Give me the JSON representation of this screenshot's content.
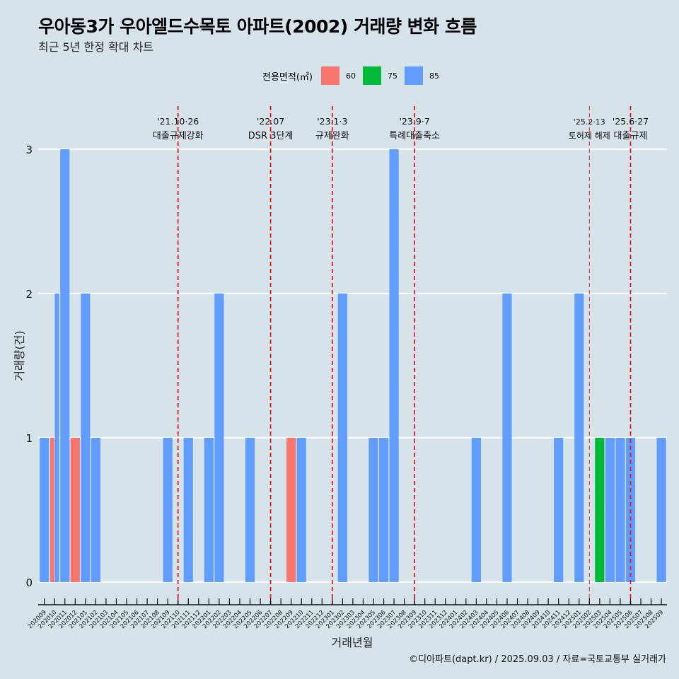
{
  "header": {
    "title": "우아동3가 우아엘드수목토 아파트(2002) 거래량 변화 흐름",
    "subtitle": "최근 5년 한정 확대 차트"
  },
  "legend": {
    "title": "전용면적(㎡)",
    "items": [
      {
        "label": "60",
        "color": "#F8766D"
      },
      {
        "label": "75",
        "color": "#00BA38"
      },
      {
        "label": "85",
        "color": "#619CFF"
      }
    ]
  },
  "footer": "©디아파트(dapt.kr) / 2025.09.03 / 자료=국토교통부 실거래가",
  "chart_data": {
    "type": "bar",
    "title": "우아동3가 우아엘드수목토 아파트(2002) 거래량 변화 흐름",
    "xlabel": "거래년월",
    "ylabel": "거래량(건)",
    "ylim": [
      0,
      3
    ],
    "yticks": [
      0,
      1,
      2,
      3
    ],
    "grid": true,
    "legend_position": "top",
    "categories": [
      "202009",
      "202010",
      "202011",
      "202012",
      "202101",
      "202102",
      "202103",
      "202104",
      "202105",
      "202106",
      "202107",
      "202108",
      "202109",
      "202110",
      "202111",
      "202112",
      "202201",
      "202202",
      "202203",
      "202204",
      "202205",
      "202206",
      "202207",
      "202208",
      "202209",
      "202210",
      "202211",
      "202212",
      "202301",
      "202302",
      "202303",
      "202304",
      "202305",
      "202306",
      "202307",
      "202308",
      "202309",
      "202310",
      "202311",
      "202312",
      "202401",
      "202402",
      "202403",
      "202404",
      "202405",
      "202406",
      "202407",
      "202408",
      "202409",
      "202410",
      "202411",
      "202412",
      "202501",
      "202502",
      "202503",
      "202504",
      "202505",
      "202506",
      "202507",
      "202508",
      "202509"
    ],
    "series": [
      {
        "name": "60",
        "color": "#F8766D",
        "points": [
          {
            "x": "202010",
            "y": 1
          },
          {
            "x": "202012",
            "y": 1
          },
          {
            "x": "202209",
            "y": 1
          }
        ]
      },
      {
        "name": "75",
        "color": "#00BA38",
        "points": [
          {
            "x": "202503",
            "y": 1
          }
        ]
      },
      {
        "name": "85",
        "color": "#619CFF",
        "points": [
          {
            "x": "202009",
            "y": 1
          },
          {
            "x": "202010",
            "y": 2
          },
          {
            "x": "202011",
            "y": 3
          },
          {
            "x": "202101",
            "y": 2
          },
          {
            "x": "202102",
            "y": 1
          },
          {
            "x": "202109",
            "y": 1
          },
          {
            "x": "202111",
            "y": 1
          },
          {
            "x": "202201",
            "y": 1
          },
          {
            "x": "202202",
            "y": 2
          },
          {
            "x": "202205",
            "y": 1
          },
          {
            "x": "202210",
            "y": 1
          },
          {
            "x": "202302",
            "y": 2
          },
          {
            "x": "202305",
            "y": 1
          },
          {
            "x": "202306",
            "y": 1
          },
          {
            "x": "202307",
            "y": 3
          },
          {
            "x": "202403",
            "y": 1
          },
          {
            "x": "202406",
            "y": 2
          },
          {
            "x": "202411",
            "y": 1
          },
          {
            "x": "202501",
            "y": 2
          },
          {
            "x": "202504",
            "y": 1
          },
          {
            "x": "202505",
            "y": 1
          },
          {
            "x": "202506",
            "y": 1
          },
          {
            "x": "202509",
            "y": 1
          }
        ]
      }
    ],
    "annotations": [
      {
        "x": "202110",
        "date": "'21.10·26",
        "label": "대출규제강화",
        "style": "bold"
      },
      {
        "x": "202207",
        "date": "'22.07",
        "label": "DSR 3단계",
        "style": "bold"
      },
      {
        "x": "202301",
        "date": "'23.1·3",
        "label": "규제완화",
        "style": "bold"
      },
      {
        "x": "202309",
        "date": "'23.9·7",
        "label": "특례대출축소",
        "style": "bold"
      },
      {
        "x": "202502",
        "date": "'25.2·13",
        "label": "토허제 해제",
        "style": "light"
      },
      {
        "x": "202506",
        "date": "'25.6·27",
        "label": "대출규제",
        "style": "bold"
      }
    ]
  }
}
